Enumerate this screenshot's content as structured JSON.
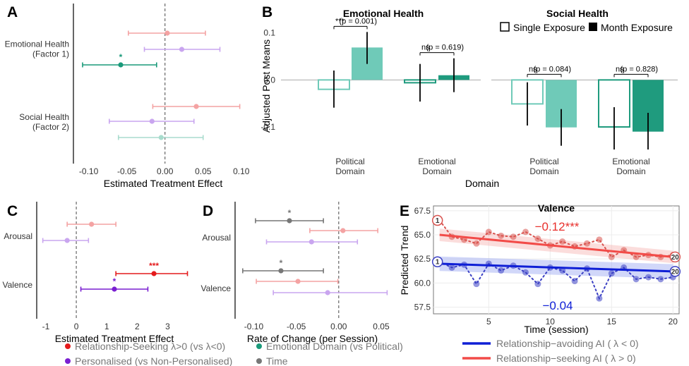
{
  "figure": {
    "panel_letters": [
      "A",
      "B",
      "C",
      "D",
      "E"
    ],
    "legend": [
      {
        "label": "Relationship-Seeking λ>0 (vs λ<0)",
        "color": "#e41a1c"
      },
      {
        "label": "Emotional Domain (vs Political)",
        "color": "#1a9a7a"
      },
      {
        "label": "Personalised (vs Non-Personalised)",
        "color": "#7a1fd1"
      },
      {
        "label": "Time",
        "color": "#777777"
      }
    ]
  },
  "chart_data": [
    {
      "id": "A",
      "type": "forest",
      "xlabel": "Estimated Treatment Effect",
      "xlim": [
        -0.12,
        0.115
      ],
      "xticks": [
        -0.1,
        -0.05,
        0.0,
        0.05,
        0.1
      ],
      "xtick_labels": [
        "-0.10",
        "-0.05",
        "0.00",
        "0.05",
        "0.10"
      ],
      "groups": [
        {
          "label_lines": [
            "Emotional Health",
            "(Factor 1)"
          ],
          "rows": [
            {
              "series": "Relationship-Seeking",
              "est": 0.003,
              "lo": -0.048,
              "hi": 0.053,
              "color": "#f4a3a3",
              "sig": ""
            },
            {
              "series": "Personalised",
              "est": 0.022,
              "lo": -0.027,
              "hi": 0.072,
              "color": "#c9a5ef",
              "sig": ""
            },
            {
              "series": "Emotional Domain",
              "est": -0.058,
              "lo": -0.108,
              "hi": -0.011,
              "color": "#1a9a7a",
              "sig": "*"
            }
          ]
        },
        {
          "label_lines": [
            "Social Health",
            "(Factor 2)"
          ],
          "rows": [
            {
              "series": "Relationship-Seeking",
              "est": 0.041,
              "lo": -0.016,
              "hi": 0.098,
              "color": "#f4a3a3",
              "sig": ""
            },
            {
              "series": "Personalised",
              "est": -0.017,
              "lo": -0.073,
              "hi": 0.038,
              "color": "#c9a5ef",
              "sig": ""
            },
            {
              "series": "Emotional Domain",
              "est": -0.005,
              "lo": -0.061,
              "hi": 0.05,
              "color": "#a9dccd",
              "sig": ""
            }
          ]
        }
      ]
    },
    {
      "id": "B",
      "type": "bar",
      "ylabel": "Adjusted Post Means",
      "xlabel": "Domain",
      "ylim": [
        -0.16,
        0.14
      ],
      "yticks": [
        0.1,
        0.0,
        -0.1
      ],
      "ytick_labels": [
        "0.1",
        "0.0",
        "-0.1"
      ],
      "legend": [
        "Single Exposure",
        "Month Exposure"
      ],
      "facets": [
        {
          "title": "Emotional Health",
          "groups": [
            {
              "label_lines": [
                "Political",
                "Domain"
              ],
              "single": -0.02,
              "single_err": [
                -0.059,
                0.02
              ],
              "month": 0.069,
              "month_err": [
                0.034,
                0.102
              ],
              "sig": "***",
              "p": "(p = 0.001)",
              "color": "#6fcab8"
            },
            {
              "label_lines": [
                "Emotional",
                "Domain"
              ],
              "single": -0.006,
              "single_err": [
                -0.046,
                0.034
              ],
              "month": 0.01,
              "month_err": [
                -0.026,
                0.046
              ],
              "sig": "ns",
              "p": "(p = 0.619)",
              "color": "#1f9b7e"
            }
          ]
        },
        {
          "title": "Social Health",
          "groups": [
            {
              "label_lines": [
                "Political",
                "Domain"
              ],
              "single": -0.051,
              "single_err": [
                -0.097,
                -0.005
              ],
              "month": -0.101,
              "month_err": [
                -0.14,
                -0.062
              ],
              "sig": "ns",
              "p": "(p = 0.084)",
              "color": "#6fcab8"
            },
            {
              "label_lines": [
                "Emotional",
                "Domain"
              ],
              "single": -0.1,
              "single_err": [
                -0.148,
                -0.058
              ],
              "month": -0.11,
              "month_err": [
                -0.148,
                -0.07
              ],
              "sig": "ns",
              "p": "(p = 0.828)",
              "color": "#1f9b7e"
            }
          ]
        }
      ]
    },
    {
      "id": "C",
      "type": "forest",
      "xlabel": "Estimated Treatment Effect",
      "xlim": [
        -1.3,
        3.8
      ],
      "xticks": [
        -1,
        0,
        1,
        2,
        3
      ],
      "xtick_labels": [
        "-1",
        "0",
        "1",
        "2",
        "3"
      ],
      "groups": [
        {
          "label_lines": [
            "Arousal"
          ],
          "rows": [
            {
              "series": "Relationship-Seeking",
              "est": 0.5,
              "lo": -0.3,
              "hi": 1.3,
              "color": "#f4a3a3",
              "sig": ""
            },
            {
              "series": "Personalised",
              "est": -0.3,
              "lo": -1.1,
              "hi": 0.4,
              "color": "#c9a5ef",
              "sig": ""
            }
          ]
        },
        {
          "label_lines": [
            "Valence"
          ],
          "rows": [
            {
              "series": "Relationship-Seeking",
              "est": 2.55,
              "lo": 1.3,
              "hi": 3.65,
              "color": "#e41a1c",
              "sig": "***"
            },
            {
              "series": "Personalised",
              "est": 1.25,
              "lo": 0.15,
              "hi": 2.35,
              "color": "#7a1fd1",
              "sig": "*"
            }
          ]
        }
      ]
    },
    {
      "id": "D",
      "type": "forest",
      "xlabel": "Rate of Change (per Session)",
      "xlim": [
        -0.122,
        0.06
      ],
      "xticks": [
        -0.1,
        -0.05,
        0.0,
        0.05
      ],
      "xtick_labels": [
        "-0.10",
        "-0.05",
        "0.00",
        "0.05"
      ],
      "groups": [
        {
          "label_lines": [
            "Arousal"
          ],
          "rows": [
            {
              "series": "Time",
              "est": -0.058,
              "lo": -0.098,
              "hi": -0.018,
              "color": "#777777",
              "sig": "*"
            },
            {
              "series": "Relationship-Seeking",
              "est": 0.005,
              "lo": -0.034,
              "hi": 0.046,
              "color": "#f4a3a3",
              "sig": ""
            },
            {
              "series": "Personalised",
              "est": -0.032,
              "lo": -0.085,
              "hi": 0.022,
              "color": "#c9a5ef",
              "sig": ""
            }
          ]
        },
        {
          "label_lines": [
            "Valence"
          ],
          "rows": [
            {
              "series": "Time",
              "est": -0.068,
              "lo": -0.113,
              "hi": -0.018,
              "color": "#777777",
              "sig": "*"
            },
            {
              "series": "Relationship-Seeking",
              "est": -0.048,
              "lo": -0.097,
              "hi": -0.001,
              "color": "#f4a3a3",
              "sig": ""
            },
            {
              "series": "Personalised",
              "est": -0.013,
              "lo": -0.077,
              "hi": 0.057,
              "color": "#c9a5ef",
              "sig": ""
            }
          ]
        }
      ]
    },
    {
      "id": "E",
      "type": "line",
      "title": "Valence",
      "xlabel": "Time (session)",
      "ylabel": "Predicted Trend",
      "xlim": [
        0.5,
        20.5
      ],
      "ylim": [
        56.8,
        68.0
      ],
      "xticks": [
        5,
        10,
        15,
        20
      ],
      "yticks": [
        57.5,
        60.0,
        62.5,
        65.0,
        67.5
      ],
      "ytick_labels": [
        "57.5",
        "60.0",
        "62.5",
        "65.0",
        "67.5"
      ],
      "slope_labels": [
        {
          "text": "−0.12***",
          "color": "#e8302c"
        },
        {
          "text": "−0.04",
          "color": "#0f1fd6"
        }
      ],
      "series": [
        {
          "name": "Relationship−avoiding AI ( λ < 0)",
          "color": "#0f1fd6",
          "point_color": "#3b40c4",
          "band_color": "#9aa6f2",
          "fit": [
            62.0,
            61.2
          ],
          "band": 0.75,
          "start_label": "1",
          "end_label": "20",
          "x": [
            1,
            2,
            3,
            4,
            5,
            6,
            7,
            8,
            9,
            10,
            11,
            12,
            13,
            14,
            15,
            16,
            17,
            18,
            19,
            20
          ],
          "y": [
            62.2,
            61.6,
            61.9,
            59.9,
            62.0,
            61.3,
            61.8,
            61.1,
            59.9,
            61.6,
            61.3,
            60.2,
            61.5,
            58.4,
            61.0,
            61.6,
            60.4,
            60.6,
            60.4,
            60.6
          ]
        },
        {
          "name": "Relationship−seeking AI ( λ > 0)",
          "color": "#f24b48",
          "point_color": "#d9534f",
          "band_color": "#f7b3b1",
          "fit": [
            65.0,
            62.7
          ],
          "band": 0.65,
          "start_label": "1",
          "end_label": "20",
          "x": [
            1,
            2,
            3,
            4,
            5,
            6,
            7,
            8,
            9,
            10,
            11,
            12,
            13,
            14,
            15,
            16,
            17,
            18,
            19,
            20
          ],
          "y": [
            66.5,
            64.8,
            64.5,
            64.1,
            65.3,
            64.9,
            64.8,
            65.3,
            64.6,
            63.9,
            64.3,
            63.8,
            64.1,
            64.5,
            62.7,
            63.4,
            62.7,
            62.9,
            62.7,
            62.9
          ]
        }
      ]
    }
  ]
}
